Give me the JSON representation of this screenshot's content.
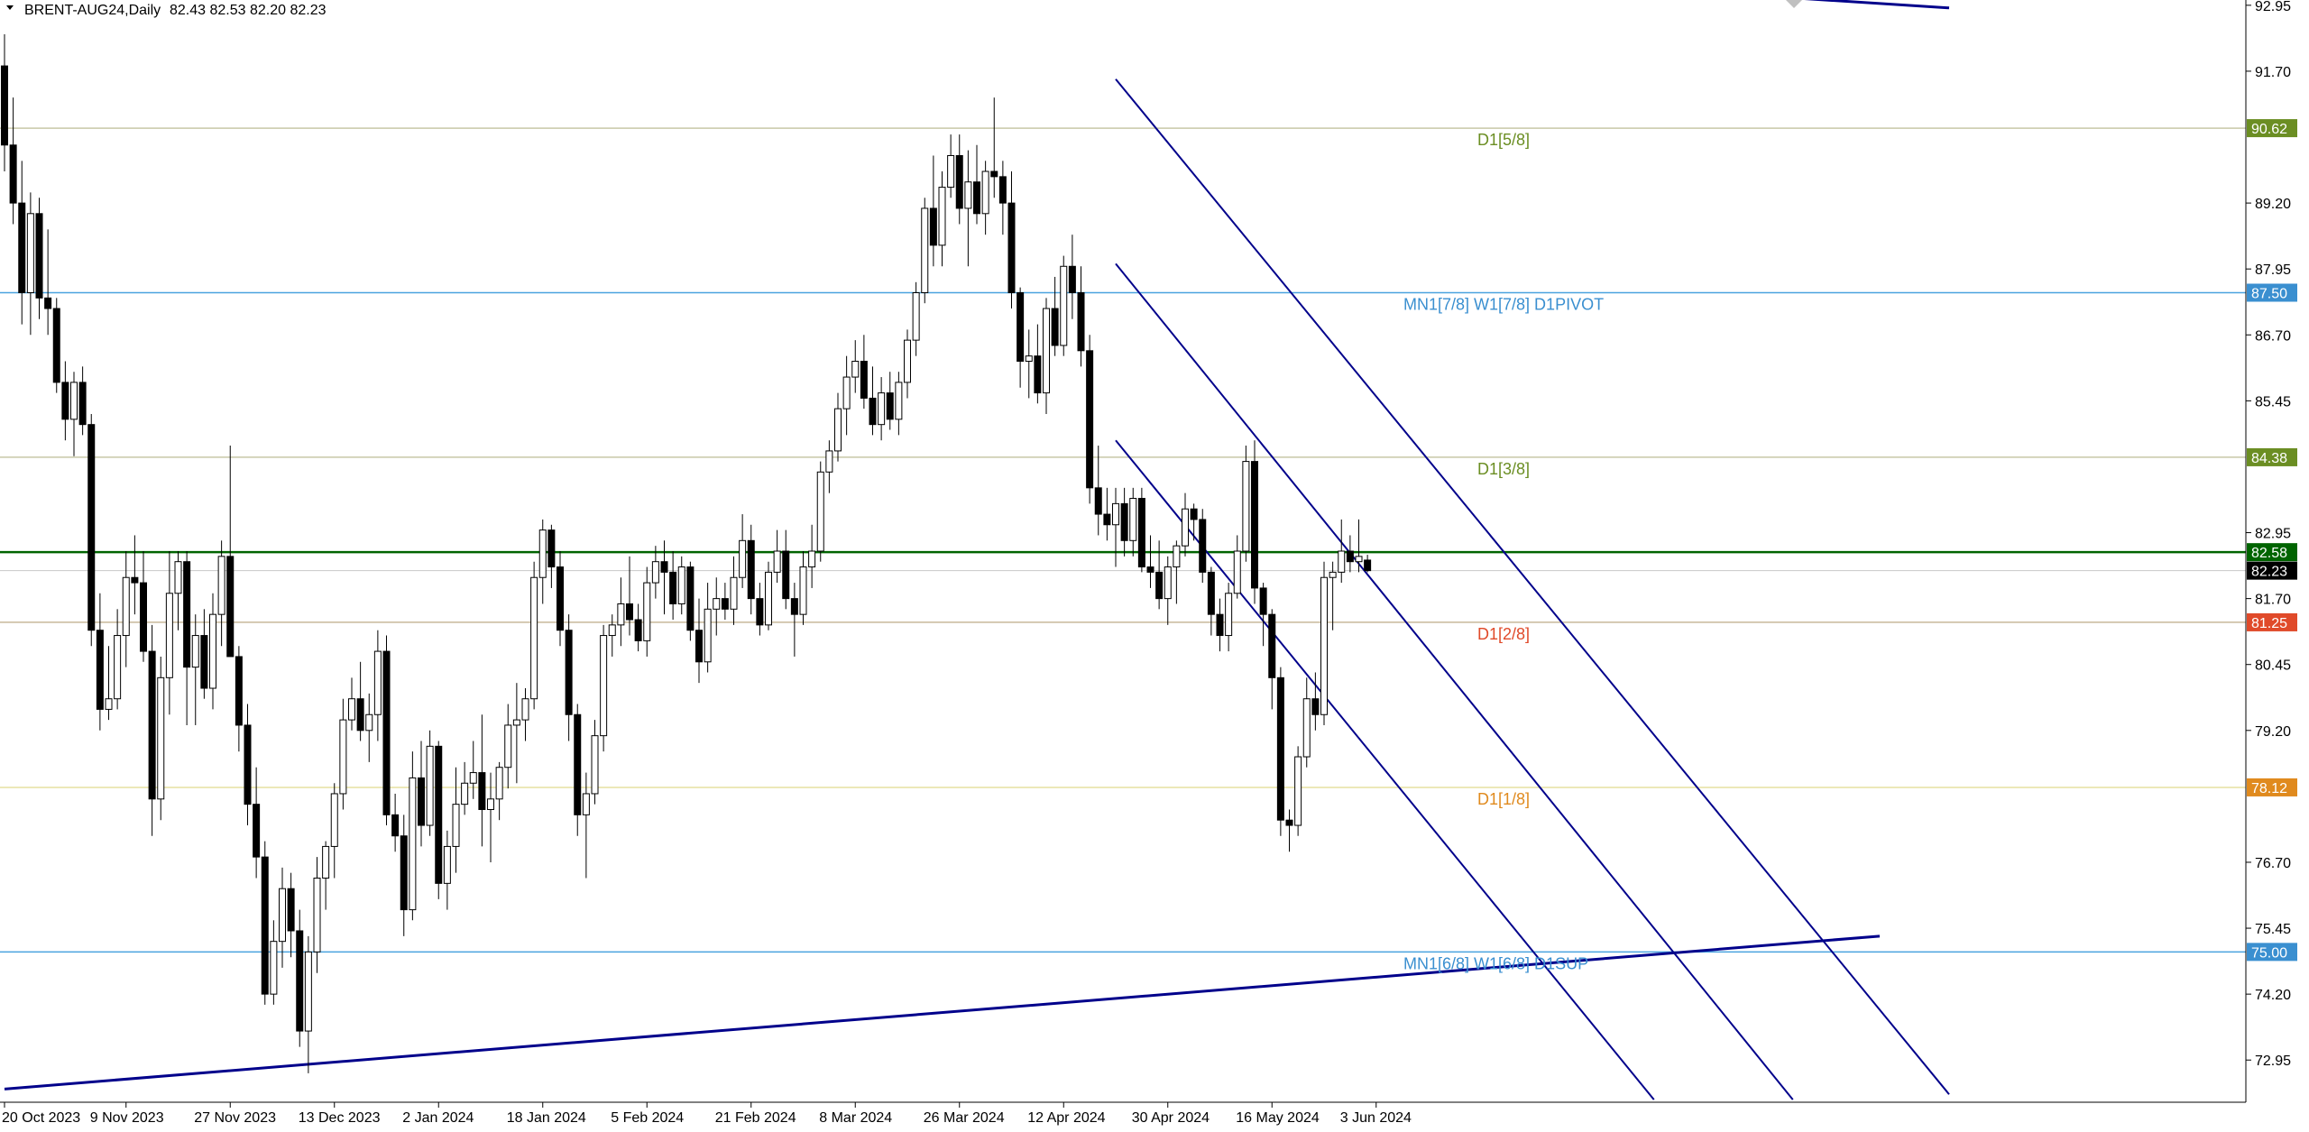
{
  "header": {
    "symbol": "BRENT-AUG24,Daily",
    "ohlc": "82.43 82.53 82.20 82.23"
  },
  "colors": {
    "background": "#ffffff",
    "candle": "#000000",
    "channel": "#00008b",
    "horizontal_blue": "#4aa3df",
    "horizontal_olive": "#c8c8a8",
    "green_line": "#006400",
    "label_olive": "#6b8e23",
    "label_blue": "#3a8fd0",
    "label_orange": "#e08a1e",
    "label_red": "#e04a2a"
  },
  "chart_data": {
    "type": "candlestick",
    "y_axis": {
      "min": 72.15,
      "max": 93.05,
      "ticks": [
        "92.95",
        "91.70",
        "89.20",
        "87.95",
        "86.70",
        "85.45",
        "82.95",
        "81.70",
        "80.45",
        "79.20",
        "76.70",
        "75.45",
        "74.20",
        "72.95"
      ]
    },
    "x_axis": {
      "ticks": [
        {
          "label": "20 Oct 2023",
          "bar": 0
        },
        {
          "label": "9 Nov 2023",
          "bar": 14
        },
        {
          "label": "27 Nov 2023",
          "bar": 26
        },
        {
          "label": "13 Dec 2023",
          "bar": 38
        },
        {
          "label": "2 Jan 2024",
          "bar": 50
        },
        {
          "label": "18 Jan 2024",
          "bar": 62
        },
        {
          "label": "5 Feb 2024",
          "bar": 74
        },
        {
          "label": "21 Feb 2024",
          "bar": 86
        },
        {
          "label": "8 Mar 2024",
          "bar": 98
        },
        {
          "label": "26 Mar 2024",
          "bar": 110
        },
        {
          "label": "12 Apr 2024",
          "bar": 122
        },
        {
          "label": "30 Apr 2024",
          "bar": 134
        },
        {
          "label": "16 May 2024",
          "bar": 146
        },
        {
          "label": "3 Jun 2024",
          "bar": 158
        }
      ]
    },
    "levels": [
      {
        "price": 90.62,
        "label": "D1[5/8]",
        "badge": "90.62",
        "style": "olive",
        "label_color": "#6b8e23",
        "badge_color": "#6b8e23"
      },
      {
        "price": 87.5,
        "label": "MN1[7/8] W1[7/8] D1PIVOT",
        "badge": "87.50",
        "style": "blue",
        "label_color": "#3a8fd0",
        "badge_color": "#3a8fd0"
      },
      {
        "price": 84.38,
        "label": "D1[3/8]",
        "badge": "84.38",
        "style": "olive",
        "label_color": "#6b8e23",
        "badge_color": "#6b8e23"
      },
      {
        "price": 82.58,
        "label": "",
        "badge": "82.58",
        "style": "green",
        "label_color": "#006400",
        "badge_color": "#006400"
      },
      {
        "price": 82.23,
        "label": "",
        "badge": "82.23",
        "style": "current",
        "label_color": "#000000",
        "badge_color": "#000000"
      },
      {
        "price": 81.25,
        "label": "D1[2/8]",
        "badge": "81.25",
        "style": "tan",
        "label_color": "#e04a2a",
        "badge_color": "#e04a2a"
      },
      {
        "price": 78.12,
        "label": "D1[1/8]",
        "badge": "78.12",
        "style": "yellow",
        "label_color": "#e08a1e",
        "badge_color": "#e08a1e"
      },
      {
        "price": 75.0,
        "label": "MN1[6/8] W1[6/8] D1SUP",
        "badge": "75.00",
        "style": "blue",
        "label_color": "#3a8fd0",
        "badge_color": "#3a8fd0"
      }
    ],
    "trendlines": [
      {
        "from": {
          "bar": 0,
          "price": 72.4
        },
        "to": {
          "bar": 216,
          "price": 75.3
        }
      },
      {
        "from": {
          "bar": 128,
          "price": 91.55
        },
        "to": {
          "bar": 224,
          "price": 72.3
        }
      },
      {
        "from": {
          "bar": 128,
          "price": 88.05
        },
        "to": {
          "bar": 206,
          "price": 72.2
        }
      },
      {
        "from": {
          "bar": 128,
          "price": 84.7
        },
        "to": {
          "bar": 190,
          "price": 72.2
        }
      },
      {
        "from": {
          "bar": 186,
          "price": 93.3
        },
        "to": {
          "bar": 224,
          "price": 92.9
        }
      }
    ],
    "candles": [
      [
        91.8,
        92.4,
        89.8,
        90.3
      ],
      [
        90.3,
        91.2,
        88.8,
        89.2
      ],
      [
        89.2,
        90.0,
        86.9,
        87.5
      ],
      [
        87.5,
        89.4,
        86.7,
        89.0
      ],
      [
        89.0,
        89.3,
        87.0,
        87.4
      ],
      [
        87.4,
        88.7,
        86.7,
        87.2
      ],
      [
        87.2,
        87.4,
        85.6,
        85.8
      ],
      [
        85.8,
        86.2,
        84.7,
        85.1
      ],
      [
        85.1,
        86.0,
        84.4,
        85.8
      ],
      [
        85.8,
        86.1,
        84.8,
        85.0
      ],
      [
        85.0,
        85.2,
        80.8,
        81.1
      ],
      [
        81.1,
        81.8,
        79.2,
        79.6
      ],
      [
        79.6,
        80.8,
        79.4,
        79.8
      ],
      [
        79.8,
        81.5,
        79.6,
        81.0
      ],
      [
        81.0,
        82.6,
        80.4,
        82.1
      ],
      [
        82.1,
        82.9,
        81.4,
        82.0
      ],
      [
        82.0,
        82.6,
        80.5,
        80.7
      ],
      [
        80.7,
        81.2,
        77.2,
        77.9
      ],
      [
        77.9,
        80.6,
        77.5,
        80.2
      ],
      [
        80.2,
        82.6,
        79.5,
        81.8
      ],
      [
        81.8,
        82.6,
        81.1,
        82.4
      ],
      [
        82.4,
        82.6,
        79.3,
        80.4
      ],
      [
        80.4,
        81.4,
        79.3,
        81.0
      ],
      [
        81.0,
        81.5,
        79.8,
        80.0
      ],
      [
        80.0,
        81.8,
        79.6,
        81.4
      ],
      [
        81.4,
        82.8,
        80.8,
        82.5
      ],
      [
        82.5,
        84.6,
        80.8,
        80.6
      ],
      [
        80.6,
        80.8,
        78.8,
        79.3
      ],
      [
        79.3,
        79.7,
        77.4,
        77.8
      ],
      [
        77.8,
        78.5,
        76.4,
        76.8
      ],
      [
        76.8,
        77.1,
        74.0,
        74.2
      ],
      [
        74.2,
        75.6,
        74.0,
        75.2
      ],
      [
        75.2,
        76.6,
        74.7,
        76.2
      ],
      [
        76.2,
        76.5,
        74.9,
        75.4
      ],
      [
        75.4,
        75.8,
        73.2,
        73.5
      ],
      [
        73.5,
        75.3,
        72.7,
        75.0
      ],
      [
        75.0,
        76.8,
        74.6,
        76.4
      ],
      [
        76.4,
        77.1,
        75.8,
        77.0
      ],
      [
        77.0,
        78.2,
        76.4,
        78.0
      ],
      [
        78.0,
        79.8,
        77.7,
        79.4
      ],
      [
        79.4,
        80.2,
        79.2,
        79.8
      ],
      [
        79.8,
        80.5,
        79.0,
        79.2
      ],
      [
        79.2,
        79.9,
        78.6,
        79.5
      ],
      [
        79.5,
        81.1,
        79.0,
        80.7
      ],
      [
        80.7,
        81.0,
        77.4,
        77.6
      ],
      [
        77.6,
        78.0,
        76.9,
        77.2
      ],
      [
        77.2,
        77.6,
        75.3,
        75.8
      ],
      [
        75.8,
        78.8,
        75.6,
        78.3
      ],
      [
        78.3,
        79.0,
        77.0,
        77.4
      ],
      [
        77.4,
        79.2,
        77.2,
        78.9
      ],
      [
        78.9,
        79.0,
        76.0,
        76.3
      ],
      [
        76.3,
        77.3,
        75.8,
        77.0
      ],
      [
        77.0,
        78.5,
        76.5,
        77.8
      ],
      [
        77.8,
        78.6,
        77.6,
        78.2
      ],
      [
        78.2,
        79.0,
        77.9,
        78.4
      ],
      [
        78.4,
        79.5,
        77.0,
        77.7
      ],
      [
        77.7,
        78.4,
        76.7,
        77.9
      ],
      [
        77.9,
        78.6,
        77.5,
        78.5
      ],
      [
        78.5,
        79.7,
        78.1,
        79.3
      ],
      [
        79.3,
        80.1,
        78.2,
        79.4
      ],
      [
        79.4,
        80.0,
        79.0,
        79.8
      ],
      [
        79.8,
        82.4,
        79.6,
        82.1
      ],
      [
        82.1,
        83.2,
        81.6,
        83.0
      ],
      [
        83.0,
        83.1,
        81.9,
        82.3
      ],
      [
        82.3,
        82.6,
        80.8,
        81.1
      ],
      [
        81.1,
        81.4,
        79.0,
        79.5
      ],
      [
        79.5,
        79.7,
        77.2,
        77.6
      ],
      [
        77.6,
        78.4,
        76.4,
        78.0
      ],
      [
        78.0,
        79.4,
        77.8,
        79.1
      ],
      [
        79.1,
        81.2,
        78.8,
        81.0
      ],
      [
        81.0,
        81.4,
        80.6,
        81.2
      ],
      [
        81.2,
        82.1,
        80.8,
        81.6
      ],
      [
        81.6,
        82.5,
        81.0,
        81.3
      ],
      [
        81.3,
        81.6,
        80.7,
        80.9
      ],
      [
        80.9,
        82.3,
        80.6,
        82.0
      ],
      [
        82.0,
        82.7,
        81.7,
        82.4
      ],
      [
        82.4,
        82.8,
        81.4,
        82.2
      ],
      [
        82.2,
        82.6,
        81.3,
        81.6
      ],
      [
        81.6,
        82.5,
        81.4,
        82.3
      ],
      [
        82.3,
        82.4,
        80.9,
        81.1
      ],
      [
        81.1,
        81.7,
        80.1,
        80.5
      ],
      [
        80.5,
        82.0,
        80.3,
        81.5
      ],
      [
        81.5,
        82.1,
        81.0,
        81.7
      ],
      [
        81.7,
        82.0,
        81.3,
        81.5
      ],
      [
        81.5,
        82.5,
        81.2,
        82.1
      ],
      [
        82.1,
        83.3,
        81.9,
        82.8
      ],
      [
        82.8,
        83.1,
        81.4,
        81.7
      ],
      [
        81.7,
        82.0,
        81.0,
        81.2
      ],
      [
        81.2,
        82.4,
        81.1,
        82.2
      ],
      [
        82.2,
        83.0,
        82.0,
        82.6
      ],
      [
        82.6,
        83.0,
        81.5,
        81.7
      ],
      [
        81.7,
        82.0,
        80.6,
        81.4
      ],
      [
        81.4,
        82.6,
        81.2,
        82.3
      ],
      [
        82.3,
        83.1,
        81.9,
        82.6
      ],
      [
        82.6,
        84.3,
        82.4,
        84.1
      ],
      [
        84.1,
        84.7,
        83.7,
        84.5
      ],
      [
        84.5,
        85.6,
        84.3,
        85.3
      ],
      [
        85.3,
        86.3,
        84.8,
        85.9
      ],
      [
        85.9,
        86.6,
        85.6,
        86.2
      ],
      [
        86.2,
        86.7,
        85.3,
        85.5
      ],
      [
        85.5,
        86.1,
        84.8,
        85.0
      ],
      [
        85.0,
        85.9,
        84.7,
        85.6
      ],
      [
        85.6,
        86.0,
        84.9,
        85.1
      ],
      [
        85.1,
        86.0,
        84.8,
        85.8
      ],
      [
        85.8,
        86.8,
        85.5,
        86.6
      ],
      [
        86.6,
        87.7,
        86.3,
        87.5
      ],
      [
        87.5,
        89.3,
        87.3,
        89.1
      ],
      [
        89.1,
        90.1,
        88.0,
        88.4
      ],
      [
        88.4,
        89.8,
        88.0,
        89.5
      ],
      [
        89.5,
        90.5,
        89.3,
        90.1
      ],
      [
        90.1,
        90.5,
        88.8,
        89.1
      ],
      [
        89.1,
        90.2,
        88.0,
        89.6
      ],
      [
        89.6,
        90.3,
        88.8,
        89.0
      ],
      [
        89.0,
        90.0,
        88.6,
        89.8
      ],
      [
        89.8,
        91.2,
        89.3,
        89.7
      ],
      [
        89.7,
        90.0,
        88.6,
        89.2
      ],
      [
        89.2,
        89.8,
        87.2,
        87.5
      ],
      [
        87.5,
        87.6,
        85.7,
        86.2
      ],
      [
        86.2,
        86.8,
        85.5,
        86.3
      ],
      [
        86.3,
        86.9,
        85.4,
        85.6
      ],
      [
        85.6,
        87.4,
        85.2,
        87.2
      ],
      [
        87.2,
        87.8,
        86.3,
        86.5
      ],
      [
        86.5,
        88.2,
        86.3,
        88.0
      ],
      [
        88.0,
        88.6,
        87.0,
        87.5
      ],
      [
        87.5,
        88.0,
        86.1,
        86.4
      ],
      [
        86.4,
        86.7,
        83.5,
        83.8
      ],
      [
        83.8,
        84.6,
        82.9,
        83.3
      ],
      [
        83.3,
        83.8,
        82.8,
        83.1
      ],
      [
        83.1,
        83.8,
        82.3,
        83.5
      ],
      [
        83.5,
        83.8,
        82.5,
        82.8
      ],
      [
        82.8,
        83.8,
        82.5,
        83.6
      ],
      [
        83.6,
        83.8,
        82.2,
        82.3
      ],
      [
        82.3,
        82.9,
        81.9,
        82.2
      ],
      [
        82.2,
        82.8,
        81.5,
        81.7
      ],
      [
        81.7,
        82.5,
        81.2,
        82.3
      ],
      [
        82.3,
        82.8,
        81.6,
        82.7
      ],
      [
        82.7,
        83.7,
        82.5,
        83.4
      ],
      [
        83.4,
        83.5,
        82.8,
        83.2
      ],
      [
        83.2,
        83.4,
        82.0,
        82.2
      ],
      [
        82.2,
        82.3,
        81.0,
        81.4
      ],
      [
        81.4,
        81.7,
        80.7,
        81.0
      ],
      [
        81.0,
        82.0,
        80.7,
        81.8
      ],
      [
        81.8,
        82.9,
        81.7,
        82.6
      ],
      [
        82.6,
        84.6,
        82.4,
        84.3
      ],
      [
        84.3,
        84.7,
        81.6,
        81.9
      ],
      [
        81.9,
        82.0,
        80.8,
        81.4
      ],
      [
        81.4,
        81.5,
        79.6,
        80.2
      ],
      [
        80.2,
        80.4,
        77.2,
        77.5
      ],
      [
        77.5,
        77.7,
        76.9,
        77.4
      ],
      [
        77.4,
        78.9,
        77.2,
        78.7
      ],
      [
        78.7,
        80.2,
        78.5,
        79.8
      ],
      [
        79.8,
        80.3,
        79.2,
        79.5
      ],
      [
        79.5,
        82.4,
        79.3,
        82.1
      ],
      [
        82.1,
        82.4,
        81.1,
        82.2
      ],
      [
        82.2,
        83.2,
        82.0,
        82.6
      ],
      [
        82.6,
        82.9,
        82.2,
        82.4
      ],
      [
        82.4,
        83.2,
        82.2,
        82.5
      ],
      [
        82.43,
        82.53,
        82.2,
        82.23
      ]
    ]
  }
}
